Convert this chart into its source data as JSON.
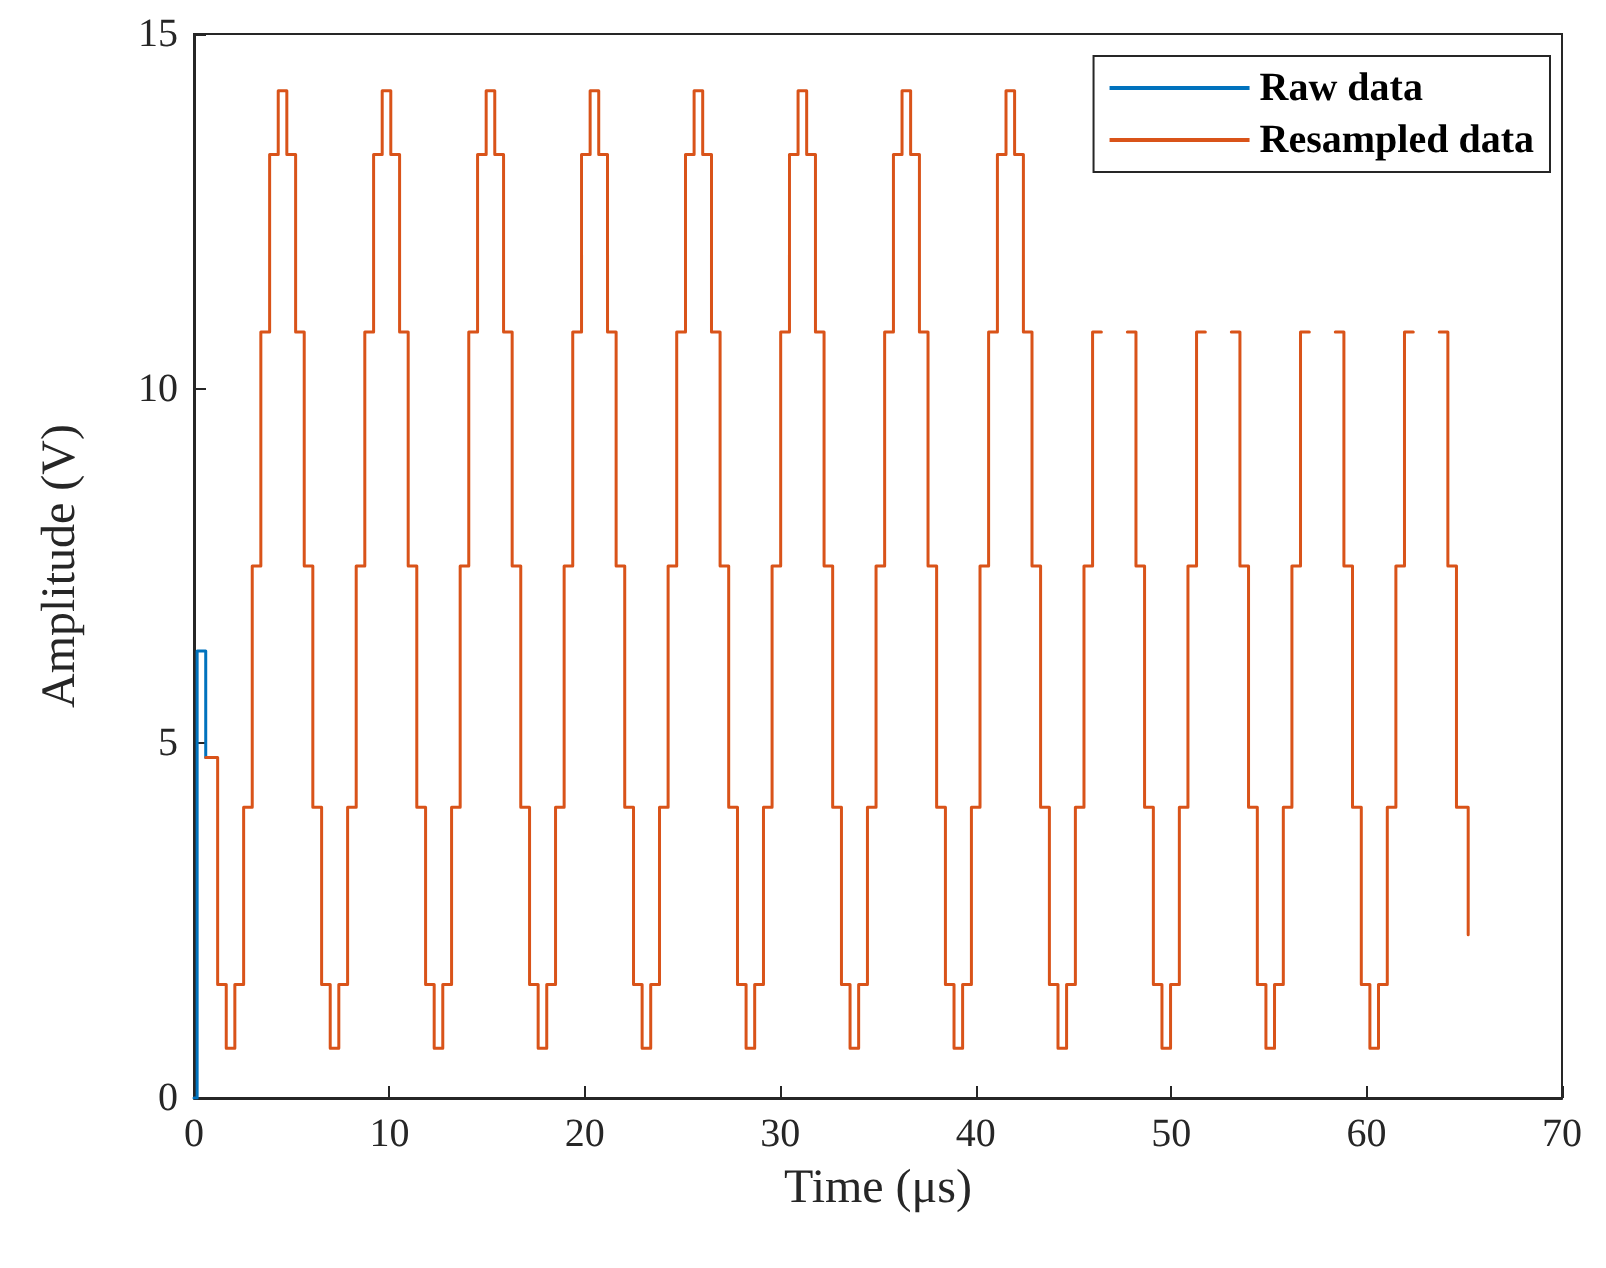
{
  "chart_data": {
    "type": "step",
    "xlabel": "Time (μs)",
    "ylabel": "Amplitude (V)",
    "xlim": [
      0,
      70
    ],
    "xticks": [
      0,
      10,
      20,
      30,
      40,
      50,
      60,
      70
    ],
    "ylim": [
      0,
      15
    ],
    "yticks": [
      0,
      5,
      10,
      15
    ],
    "grid": false,
    "legend": "top right",
    "marker": "none",
    "line_style": "solid",
    "x": [
      0.6,
      1.21,
      1.65,
      2.09,
      2.54,
      2.98,
      3.42,
      3.87,
      4.31,
      4.75,
      5.2,
      5.64,
      6.08,
      6.53,
      6.97,
      7.41,
      7.86,
      8.3,
      8.74,
      9.19,
      9.63,
      10.07,
      10.52,
      10.96,
      11.4,
      11.85,
      12.29,
      12.73,
      13.18,
      13.62,
      14.06,
      14.51,
      14.95,
      15.39,
      15.84,
      16.28,
      16.72,
      17.17,
      17.61,
      18.05,
      18.5,
      18.94,
      19.38,
      19.83,
      20.27,
      20.71,
      21.16,
      21.6,
      22.04,
      22.49,
      22.93,
      23.37,
      23.82,
      24.26,
      24.7,
      25.15,
      25.59,
      26.03,
      26.48,
      26.92,
      27.36,
      27.81,
      28.25,
      28.69,
      29.14,
      29.58,
      30.02,
      30.47,
      30.91,
      31.35,
      31.8,
      32.24,
      32.68,
      33.13,
      33.57,
      34.01,
      34.46,
      34.9,
      35.34,
      35.79,
      36.23,
      36.67,
      37.12,
      37.56,
      38.0,
      38.45,
      38.89,
      39.33,
      39.78,
      40.22,
      40.66,
      41.11,
      41.55,
      41.99,
      42.44,
      42.88,
      43.32,
      43.77,
      44.21,
      44.65,
      45.1,
      45.54,
      45.98,
      46.43,
      46.87,
      47.31,
      47.76,
      48.2,
      48.64,
      49.09,
      49.53,
      49.97,
      50.42,
      50.86,
      51.3,
      51.75,
      52.19,
      52.63,
      53.08,
      53.52,
      53.96,
      54.41,
      54.85,
      55.29,
      55.74,
      56.18,
      56.62,
      57.07,
      57.51,
      57.95,
      58.4,
      58.84,
      59.28,
      59.73,
      60.17,
      60.61,
      61.06,
      61.5,
      61.94,
      62.39,
      62.83,
      63.27,
      63.72,
      64.16,
      64.6,
      65.2
    ],
    "series": [
      {
        "name": "Raw data",
        "color": "#0072bd",
        "x": [
          0,
          0.16,
          0.6
        ],
        "values": [
          0,
          6.3,
          4.8
        ]
      },
      {
        "name": "Resampled data",
        "color": "#d95319",
        "values": [
          4.8,
          1.6,
          0.7,
          1.6,
          4.1,
          7.5,
          10.8,
          13.3,
          14.2,
          13.3,
          10.8,
          7.5,
          4.1,
          1.6,
          0.7,
          1.6,
          4.1,
          7.5,
          10.8,
          13.3,
          14.2,
          13.3,
          10.8,
          7.5,
          4.1,
          1.6,
          0.7,
          1.6,
          4.1,
          7.5,
          10.8,
          13.3,
          14.2,
          13.3,
          10.8,
          7.5,
          4.1,
          1.6,
          0.7,
          1.6,
          4.1,
          7.5,
          10.8,
          13.3,
          14.2,
          13.3,
          10.8,
          7.5,
          4.1,
          1.6,
          0.7,
          1.6,
          4.1,
          7.5,
          10.8,
          13.3,
          14.2,
          13.3,
          10.8,
          7.5,
          4.1,
          1.6,
          0.7,
          1.6,
          4.1,
          7.5,
          10.8,
          13.3,
          14.2,
          13.3,
          10.8,
          7.5,
          4.1,
          1.6,
          0.7,
          1.6,
          4.1,
          7.5,
          10.8,
          13.3,
          14.2,
          13.3,
          10.8,
          7.5,
          4.1,
          1.6,
          0.7,
          1.6,
          4.1,
          7.5,
          10.8,
          13.3,
          14.2,
          13.3,
          10.8,
          7.5,
          4.1,
          1.6,
          0.7,
          1.6,
          4.1,
          7.5,
          10.8,
          null,
          null,
          null,
          10.8,
          7.5,
          4.1,
          1.6,
          0.7,
          1.6,
          4.1,
          7.5,
          10.8,
          null,
          null,
          null,
          10.8,
          7.5,
          4.1,
          1.6,
          0.7,
          1.6,
          4.1,
          7.5,
          10.8,
          null,
          null,
          null,
          10.8,
          7.5,
          4.1,
          1.6,
          0.7,
          1.6,
          4.1,
          7.5,
          10.8,
          null,
          null,
          null,
          10.8,
          7.5,
          4.1,
          2.3
        ]
      }
    ]
  }
}
